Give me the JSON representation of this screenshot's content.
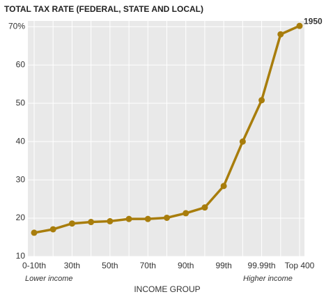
{
  "chart_data": {
    "type": "line",
    "title": "TOTAL TAX RATE (FEDERAL, STATE AND LOCAL)",
    "x_label": "INCOME GROUP",
    "annotations": [
      "Lower income",
      "Higher income",
      "1950"
    ],
    "categories": [
      "0-10th",
      null,
      "30th",
      null,
      "50th",
      null,
      "70th",
      null,
      "90th",
      null,
      "99th",
      null,
      "99.99th",
      null,
      "Top 400"
    ],
    "series": [
      {
        "name": "Total tax rate",
        "color": "#a87d0c",
        "values": [
          16.2,
          17.1,
          18.6,
          19.0,
          19.2,
          19.8,
          19.8,
          20.1,
          21.3,
          22.8,
          28.4,
          40.0,
          50.8,
          68.0,
          70.2
        ]
      }
    ],
    "ylim": [
      10,
      71.5
    ],
    "yticks": [
      10,
      20,
      30,
      40,
      50,
      60,
      {
        "value": 70,
        "label": "70%"
      }
    ],
    "grid": true
  }
}
